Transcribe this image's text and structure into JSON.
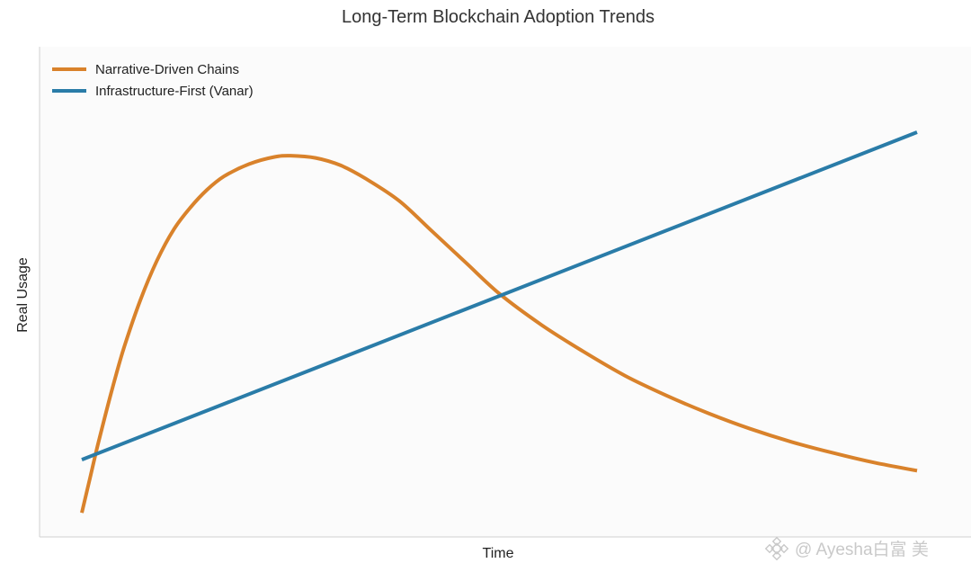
{
  "chart_data": {
    "type": "line",
    "title": "Long-Term Blockchain Adoption Trends",
    "xlabel": "Time",
    "ylabel": "Real Usage",
    "xlim": [
      0,
      10
    ],
    "ylim": [
      0,
      10
    ],
    "grid": false,
    "legend_position": "top-left",
    "x_ticks": false,
    "y_ticks": false,
    "series": [
      {
        "name": "Narrative-Driven Chains",
        "color": "#d9822b",
        "x": [
          0.0,
          0.1,
          0.2,
          0.35,
          0.5,
          0.7,
          0.9,
          1.1,
          1.3,
          1.5,
          1.7,
          2.0,
          2.3,
          2.5,
          2.8,
          3.1,
          3.4,
          3.8,
          4.2,
          4.6,
          5.0,
          5.5,
          6.0,
          6.5,
          7.0,
          7.5,
          8.0,
          8.5,
          9.0,
          9.5,
          10.0
        ],
        "values": [
          0.2,
          1.0,
          1.8,
          2.9,
          3.9,
          5.0,
          5.9,
          6.6,
          7.1,
          7.5,
          7.8,
          8.08,
          8.24,
          8.27,
          8.22,
          8.05,
          7.75,
          7.25,
          6.55,
          5.85,
          5.15,
          4.45,
          3.85,
          3.3,
          2.85,
          2.45,
          2.1,
          1.8,
          1.55,
          1.33,
          1.15
        ]
      },
      {
        "name": "Infrastructure-First (Vanar)",
        "color": "#2a7ca8",
        "x": [
          0,
          10
        ],
        "values": [
          1.4,
          8.8
        ]
      }
    ]
  },
  "watermark": {
    "text": "@ Ayesha白富 美",
    "icon": "binance-logo-icon"
  }
}
